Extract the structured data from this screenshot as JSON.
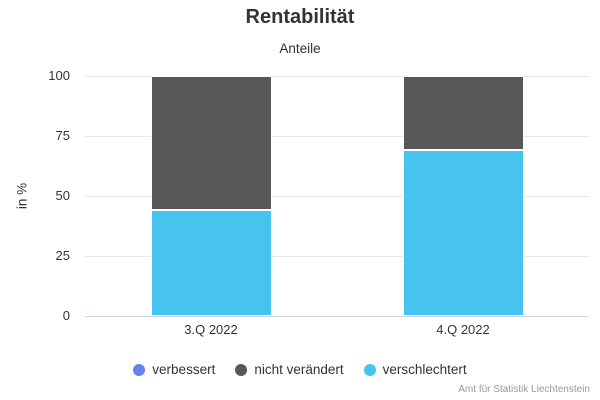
{
  "chart_data": {
    "type": "bar",
    "stacked": true,
    "title": "Rentabilität",
    "subtitle": "Anteile",
    "ylabel": "in %",
    "xlabel": "",
    "ylim": [
      0,
      100
    ],
    "yticks": [
      0,
      25,
      50,
      75,
      100
    ],
    "categories": [
      "3.Q 2022",
      "4.Q 2022"
    ],
    "series": [
      {
        "name": "verbessert",
        "color": "#6783eb",
        "values": [
          0,
          0
        ]
      },
      {
        "name": "nicht verändert",
        "color": "#58585a",
        "values": [
          56,
          31
        ]
      },
      {
        "name": "verschlechtert",
        "color": "#47c3f0",
        "values": [
          44,
          69
        ]
      }
    ],
    "stack_order_bottom_to_top": [
      "verschlechtert",
      "nicht verändert",
      "verbessert"
    ],
    "legend_position": "bottom",
    "grid": true,
    "gridline_color": "#e7e7e7",
    "axis_line_color": "#ccd6eb",
    "credits": "Amt für Statistik Liechtenstein"
  }
}
